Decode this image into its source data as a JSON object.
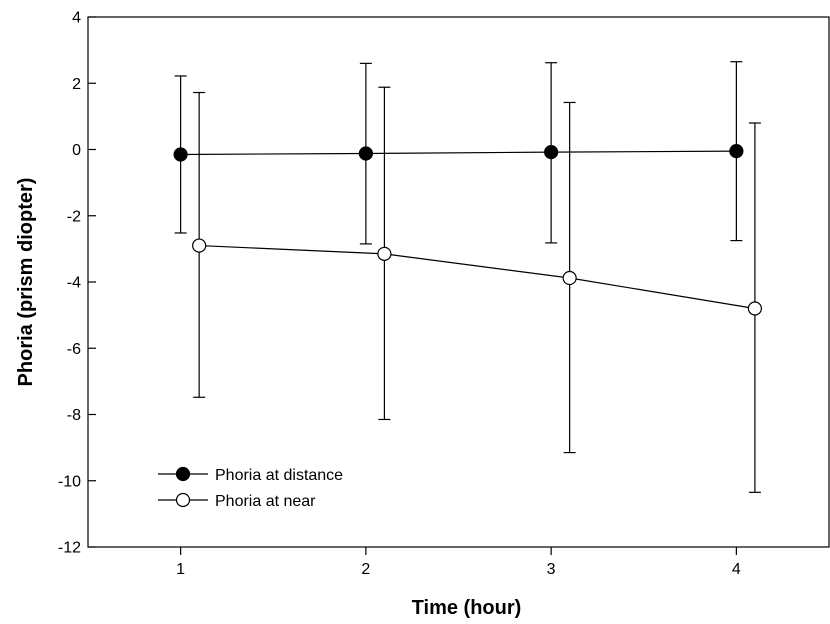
{
  "chart_data": {
    "type": "line",
    "x": [
      1,
      2,
      3,
      4
    ],
    "xlabel": "Time (hour)",
    "ylabel": "Phoria (prism diopter)",
    "xlim": [
      0.5,
      4.5
    ],
    "ylim": [
      -12,
      4
    ],
    "xticks": [
      1,
      2,
      3,
      4
    ],
    "yticks": [
      4,
      2,
      0,
      -2,
      -4,
      -6,
      -8,
      -10,
      -12
    ],
    "grid": false,
    "legend_position": "bottom-left",
    "series": [
      {
        "name": "Phoria at distance",
        "marker": "filled-circle",
        "color": "#000000",
        "x_offset": 0,
        "values": [
          -0.15,
          -0.12,
          -0.08,
          -0.05
        ],
        "err_upper": [
          2.22,
          2.6,
          2.62,
          2.65
        ],
        "err_lower": [
          -2.52,
          -2.85,
          -2.82,
          -2.75
        ]
      },
      {
        "name": "Phoria at near",
        "marker": "open-circle",
        "color": "#000000",
        "x_offset": 0.1,
        "values": [
          -2.9,
          -3.15,
          -3.88,
          -4.8
        ],
        "err_upper": [
          1.72,
          1.88,
          1.42,
          0.8
        ],
        "err_lower": [
          -7.48,
          -8.15,
          -9.15,
          -10.35
        ]
      }
    ]
  }
}
